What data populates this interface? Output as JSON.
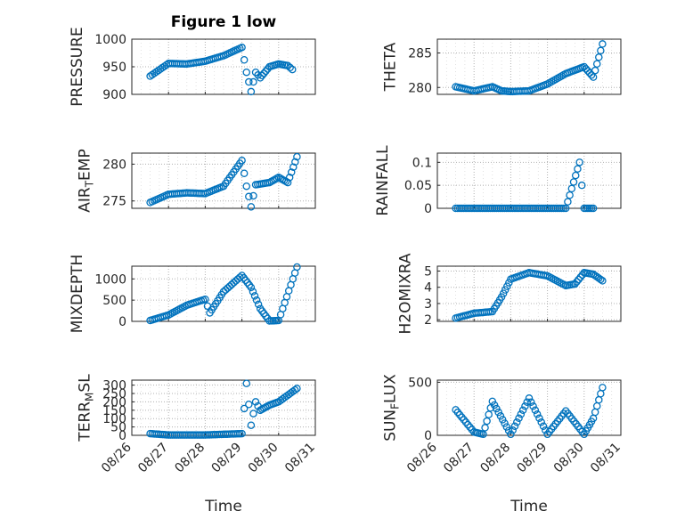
{
  "figure_title": "Figure 1 low",
  "shared_xlabel": "Time",
  "date_ticks": [
    "08/26",
    "08/27",
    "08/28",
    "08/29",
    "08/30",
    "08/31"
  ],
  "colors": {
    "marker": "#0072bd",
    "grid": "#b0b0b0",
    "axis": "#262626"
  },
  "chart_data": [
    {
      "type": "scatter",
      "title": "Figure 1 low",
      "ylabel": "PRESSURE",
      "ylim": [
        900,
        1000
      ],
      "yticks": [
        900,
        950,
        1000
      ],
      "yticklabels": [
        "900",
        "950",
        "1000"
      ],
      "xlim": [
        "08/26",
        "08/31"
      ],
      "grid": true,
      "marker": "circle",
      "x": [
        "08/26 12:00",
        "08/27 00:00",
        "08/27 12:00",
        "08/28 00:00",
        "08/28 12:00",
        "08/29 00:00",
        "08/29 03:00",
        "08/29 06:00",
        "08/29 09:00",
        "08/29 12:00",
        "08/29 18:00",
        "08/30 00:00",
        "08/30 06:00",
        "08/30 09:00"
      ],
      "y": [
        933,
        956,
        955,
        960,
        970,
        985,
        940,
        905,
        940,
        930,
        950,
        955,
        952,
        945
      ]
    },
    {
      "type": "scatter",
      "ylabel": "THETA",
      "ylim": [
        279,
        287
      ],
      "yticks": [
        280,
        285
      ],
      "yticklabels": [
        "280",
        "285"
      ],
      "xlim": [
        "08/26",
        "08/31"
      ],
      "grid": true,
      "marker": "circle",
      "x": [
        "08/26 12:00",
        "08/27 00:00",
        "08/27 12:00",
        "08/27 18:00",
        "08/28 00:00",
        "08/28 12:00",
        "08/29 00:00",
        "08/29 12:00",
        "08/29 18:00",
        "08/30 00:00",
        "08/30 06:00",
        "08/30 12:00"
      ],
      "y": [
        280.1,
        279.5,
        280.1,
        279.5,
        279.4,
        279.5,
        280.5,
        282,
        282.5,
        283,
        281.5,
        286.3
      ]
    },
    {
      "type": "scatter",
      "ylabel": "AIR_TEMP",
      "ylim": [
        274,
        281.5
      ],
      "yticks": [
        275,
        280
      ],
      "yticklabels": [
        "275",
        "280"
      ],
      "xlim": [
        "08/26",
        "08/31"
      ],
      "grid": true,
      "marker": "circle",
      "x": [
        "08/26 12:00",
        "08/27 00:00",
        "08/27 12:00",
        "08/28 00:00",
        "08/28 12:00",
        "08/29 00:00",
        "08/29 03:00",
        "08/29 06:00",
        "08/29 09:00",
        "08/29 18:00",
        "08/30 00:00",
        "08/30 06:00",
        "08/30 12:00"
      ],
      "y": [
        274.8,
        275.9,
        276.1,
        276.0,
        277.0,
        280.5,
        277.0,
        274.2,
        277.2,
        277.5,
        278.2,
        277.5,
        281.0
      ]
    },
    {
      "type": "scatter",
      "ylabel": "RAINFALL",
      "ylim": [
        0,
        0.12
      ],
      "yticks": [
        0,
        0.05,
        0.1
      ],
      "yticklabels": [
        "0",
        "0.05",
        "0.1"
      ],
      "xlim": [
        "08/26",
        "08/31"
      ],
      "grid": true,
      "marker": "circle",
      "x": [
        "08/26 12:00",
        "08/27 00:00",
        "08/27 12:00",
        "08/28 00:00",
        "08/28 12:00",
        "08/29 00:00",
        "08/29 12:00",
        "08/29 21:00",
        "08/30 00:00",
        "08/30 06:00"
      ],
      "y": [
        0,
        0,
        0,
        0,
        0,
        0,
        0,
        0.1,
        0,
        0
      ]
    },
    {
      "type": "scatter",
      "ylabel": "MIXDEPTH",
      "ylim": [
        0,
        1300
      ],
      "yticks": [
        0,
        500,
        1000
      ],
      "yticklabels": [
        "0",
        "500",
        "1000"
      ],
      "xlim": [
        "08/26",
        "08/31"
      ],
      "grid": true,
      "marker": "circle",
      "x": [
        "08/26 12:00",
        "08/27 00:00",
        "08/27 12:00",
        "08/28 00:00",
        "08/28 03:00",
        "08/28 12:00",
        "08/29 00:00",
        "08/29 06:00",
        "08/29 12:00",
        "08/29 18:00",
        "08/30 00:00",
        "08/30 12:00"
      ],
      "y": [
        20,
        150,
        380,
        520,
        200,
        700,
        1080,
        800,
        300,
        10,
        20,
        1280
      ]
    },
    {
      "type": "scatter",
      "ylabel": "H2OMIXRA",
      "ylim": [
        1.9,
        5.3
      ],
      "yticks": [
        2,
        3,
        4,
        5
      ],
      "yticklabels": [
        "2",
        "3",
        "4",
        "5"
      ],
      "xlim": [
        "08/26",
        "08/31"
      ],
      "grid": true,
      "marker": "circle",
      "x": [
        "08/26 12:00",
        "08/27 00:00",
        "08/27 12:00",
        "08/27 18:00",
        "08/28 00:00",
        "08/28 12:00",
        "08/29 00:00",
        "08/29 12:00",
        "08/29 18:00",
        "08/30 00:00",
        "08/30 06:00",
        "08/30 12:00"
      ],
      "y": [
        2.1,
        2.4,
        2.5,
        3.4,
        4.5,
        4.9,
        4.7,
        4.1,
        4.2,
        4.9,
        4.8,
        4.4
      ]
    },
    {
      "type": "scatter",
      "ylabel": "TERR_MSL",
      "ylim": [
        0,
        330
      ],
      "yticks": [
        0,
        50,
        100,
        150,
        200,
        250,
        300
      ],
      "yticklabels": [
        "0",
        "50",
        "100",
        "150",
        "200",
        "250",
        "300"
      ],
      "xlim": [
        "08/26",
        "08/31"
      ],
      "grid": true,
      "marker": "circle",
      "x": [
        "08/26 12:00",
        "08/27 00:00",
        "08/28 00:00",
        "08/29 00:00",
        "08/29 03:00",
        "08/29 06:00",
        "08/29 09:00",
        "08/29 12:00",
        "08/29 18:00",
        "08/30 00:00",
        "08/30 12:00"
      ],
      "y": [
        10,
        2,
        2,
        10,
        310,
        60,
        200,
        150,
        180,
        200,
        280
      ]
    },
    {
      "type": "scatter",
      "ylabel": "SUN_FLUX",
      "ylim": [
        0,
        520
      ],
      "yticks": [
        0,
        500
      ],
      "yticklabels": [
        "0",
        "500"
      ],
      "xlim": [
        "08/26",
        "08/31"
      ],
      "grid": true,
      "marker": "circle",
      "x": [
        "08/26 12:00",
        "08/27 00:00",
        "08/27 06:00",
        "08/27 12:00",
        "08/28 00:00",
        "08/28 12:00",
        "08/29 00:00",
        "08/29 12:00",
        "08/30 00:00",
        "08/30 06:00",
        "08/30 12:00"
      ],
      "y": [
        240,
        30,
        10,
        320,
        10,
        350,
        10,
        230,
        10,
        160,
        450
      ]
    }
  ]
}
